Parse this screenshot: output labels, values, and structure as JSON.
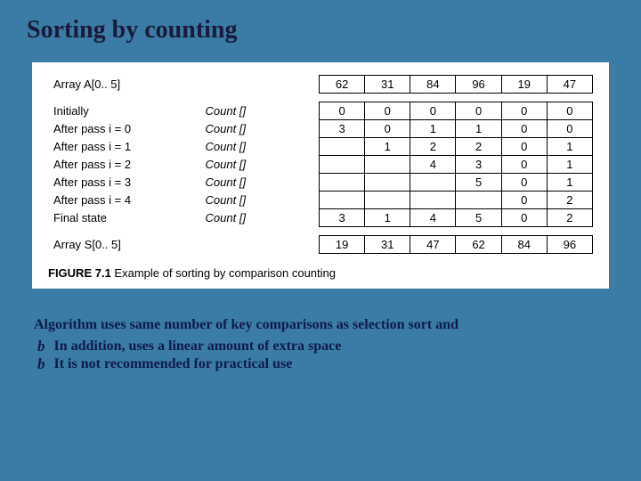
{
  "colors": {
    "slide_bg": "#3a7ca5",
    "title_color": "#1a1a3a",
    "notes_color": "#0f1a4a",
    "figure_bg": "#ffffff",
    "border": "#000000"
  },
  "title": "Sorting by counting",
  "figure": {
    "header_label": "Array A[0.. 5]",
    "header_values": [
      "62",
      "31",
      "84",
      "96",
      "19",
      "47"
    ],
    "count_label": "Count []",
    "rows": [
      {
        "label": "Initially",
        "cells": [
          "0",
          "0",
          "0",
          "0",
          "0",
          "0"
        ]
      },
      {
        "label": "After pass  i  = 0",
        "cells": [
          "3",
          "0",
          "1",
          "1",
          "0",
          "0"
        ]
      },
      {
        "label": "After pass  i  = 1",
        "cells": [
          "",
          "1",
          "2",
          "2",
          "0",
          "1"
        ]
      },
      {
        "label": "After pass  i  = 2",
        "cells": [
          "",
          "",
          "4",
          "3",
          "0",
          "1"
        ]
      },
      {
        "label": "After pass  i  = 3",
        "cells": [
          "",
          "",
          "",
          "5",
          "0",
          "1"
        ]
      },
      {
        "label": "After pass  i  = 4",
        "cells": [
          "",
          "",
          "",
          "",
          "0",
          "2"
        ]
      },
      {
        "label": "Final state",
        "cells": [
          "3",
          "1",
          "4",
          "5",
          "0",
          "2"
        ]
      }
    ],
    "footer_label": "Array S[0.. 5]",
    "footer_values": [
      "19",
      "31",
      "47",
      "62",
      "84",
      "96"
    ],
    "caption_num": "FIGURE 7.1",
    "caption_text": "Example of sorting by comparison counting"
  },
  "notes": {
    "lead": "Algorithm uses same number of key comparisons as selection sort and",
    "bullets": [
      "In addition, uses a linear amount of extra space",
      "It is not recommended for practical use"
    ]
  }
}
